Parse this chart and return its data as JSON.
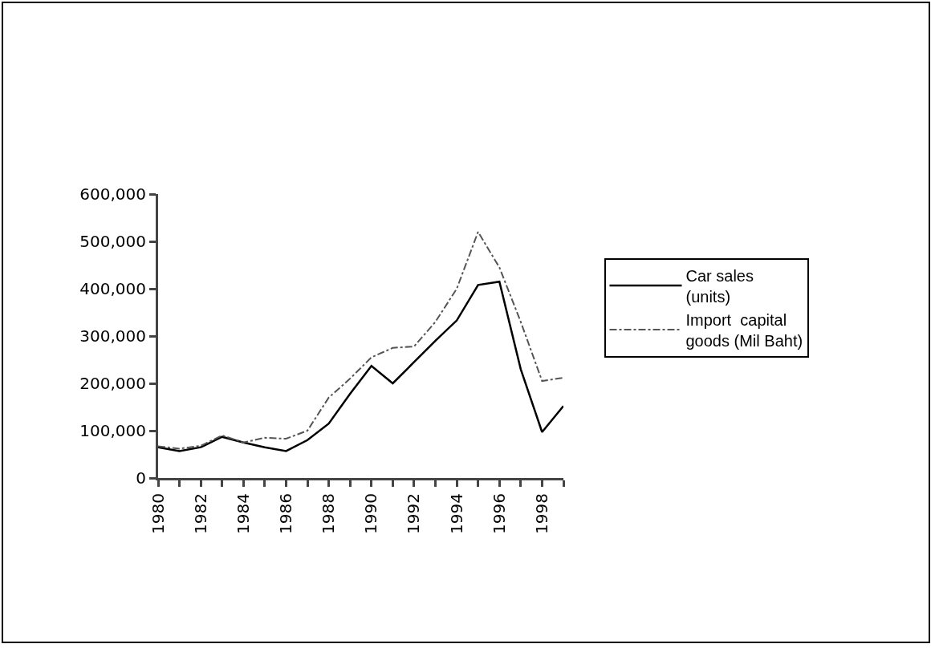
{
  "chart_data": {
    "type": "line",
    "x": [
      1980,
      1981,
      1982,
      1983,
      1984,
      1985,
      1986,
      1987,
      1988,
      1989,
      1990,
      1991,
      1992,
      1993,
      1994,
      1995,
      1996,
      1997,
      1998,
      1999
    ],
    "series": [
      {
        "name": "Car sales (units)",
        "color": "#000000",
        "line_style": "solid",
        "values": [
          65000,
          57000,
          65000,
          87000,
          75000,
          65000,
          57000,
          80000,
          115000,
          178000,
          237000,
          200000,
          245000,
          290000,
          333000,
          408000,
          415000,
          230000,
          97000,
          152000
        ]
      },
      {
        "name": "Import  capital goods (Mil Baht)",
        "color": "#555555",
        "line_style": "dotted",
        "values": [
          67000,
          62000,
          68000,
          90000,
          75000,
          85000,
          83000,
          100000,
          170000,
          210000,
          255000,
          275000,
          278000,
          330000,
          400000,
          520000,
          445000,
          330000,
          205000,
          212000
        ]
      }
    ],
    "xlim": [
      1980,
      1999
    ],
    "xticks": [
      1980,
      {
        "value": 1981,
        "label": null
      },
      1982,
      {
        "value": 1983,
        "label": null
      },
      1984,
      {
        "value": 1985,
        "label": null
      },
      1986,
      {
        "value": 1987,
        "label": null
      },
      1988,
      {
        "value": 1989,
        "label": null
      },
      1990,
      {
        "value": 1991,
        "label": null
      },
      1992,
      {
        "value": 1993,
        "label": null
      },
      1994,
      {
        "value": 1995,
        "label": null
      },
      1996,
      {
        "value": 1997,
        "label": null
      },
      1998,
      {
        "value": 1999,
        "label": null
      }
    ],
    "ylim": [
      0,
      600000
    ],
    "yticks": [
      {
        "value": 0,
        "label": "0"
      },
      {
        "value": 100000,
        "label": "100,000"
      },
      {
        "value": 200000,
        "label": "200,000"
      },
      {
        "value": 300000,
        "label": "300,000"
      },
      {
        "value": 400000,
        "label": "400,000"
      },
      {
        "value": 500000,
        "label": "500,000"
      },
      {
        "value": 600000,
        "label": "600,000"
      }
    ],
    "grid": false,
    "legend": "right",
    "marker": "none"
  }
}
